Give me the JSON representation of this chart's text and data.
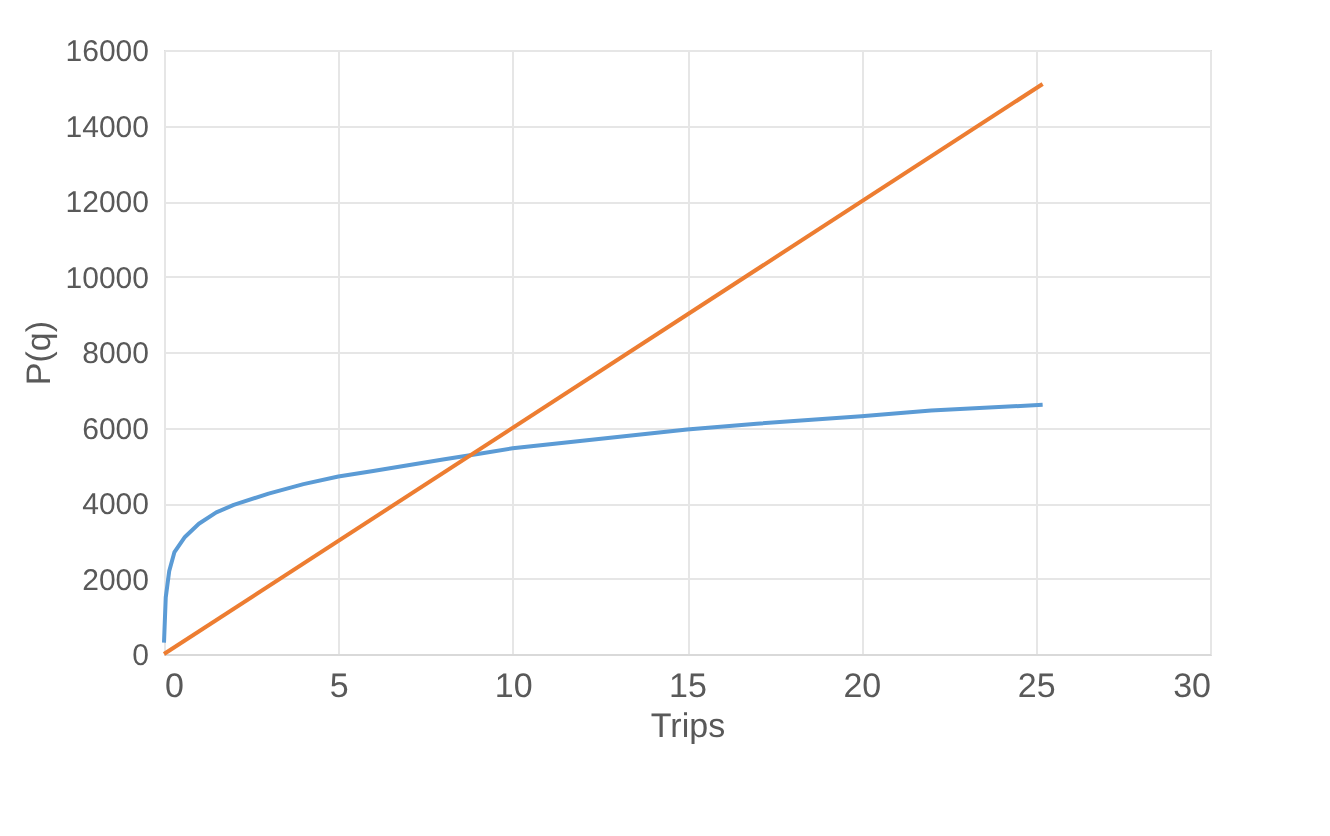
{
  "chart_data": {
    "type": "line",
    "xlabel": "Trips",
    "ylabel": "P(q)",
    "xlim": [
      0,
      30
    ],
    "xticks": [
      0,
      5,
      10,
      15,
      20,
      25,
      30
    ],
    "ylim": [
      0,
      16000
    ],
    "yticks": [
      0,
      2000,
      4000,
      6000,
      8000,
      10000,
      12000,
      14000,
      16000
    ],
    "grid": true,
    "marker": "none",
    "line_style": "solid",
    "series": [
      {
        "color": "#5b9bd5",
        "x": [
          0,
          0.05,
          0.15,
          0.3,
          0.6,
          1,
          1.5,
          2,
          3,
          4,
          5,
          6,
          7,
          8,
          9,
          10,
          12,
          14,
          15,
          17,
          20,
          22,
          25.2
        ],
        "values": [
          300,
          1500,
          2200,
          2700,
          3100,
          3450,
          3750,
          3950,
          4250,
          4500,
          4700,
          4850,
          5000,
          5150,
          5300,
          5450,
          5650,
          5850,
          5950,
          6100,
          6300,
          6450,
          6600
        ]
      },
      {
        "color": "#ed7d31",
        "x": [
          0,
          25.2
        ],
        "values": [
          0,
          15100
        ]
      }
    ]
  }
}
